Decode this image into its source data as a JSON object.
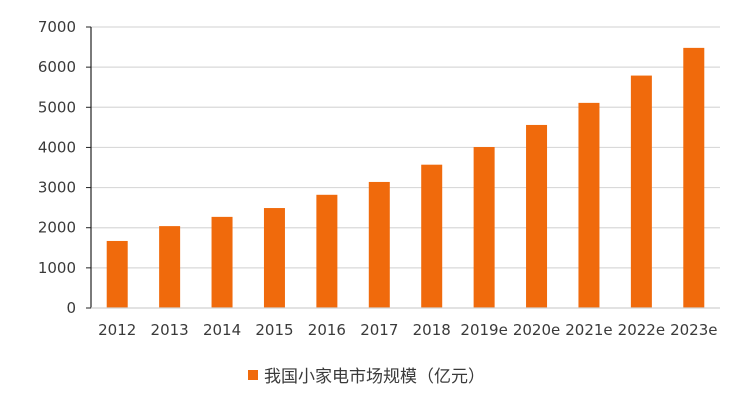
{
  "chart_data": {
    "type": "bar",
    "title": "",
    "xlabel": "",
    "ylabel": "",
    "ylim": [
      0,
      7000
    ],
    "yticks": [
      0,
      1000,
      2000,
      3000,
      4000,
      5000,
      6000,
      7000
    ],
    "grid": true,
    "legend_position": "bottom",
    "categories": [
      "2012",
      "2013",
      "2014",
      "2015",
      "2016",
      "2017",
      "2018",
      "2019e",
      "2020e",
      "2021e",
      "2022e",
      "2023e"
    ],
    "series": [
      {
        "name": "我国小家电市场规模（亿元）",
        "color": "#f06a0c",
        "values": [
          1670,
          2040,
          2270,
          2490,
          2820,
          3140,
          3570,
          4010,
          4560,
          5110,
          5790,
          6480
        ]
      }
    ]
  },
  "legend": {
    "label": "我国小家电市场规模（亿元）"
  }
}
